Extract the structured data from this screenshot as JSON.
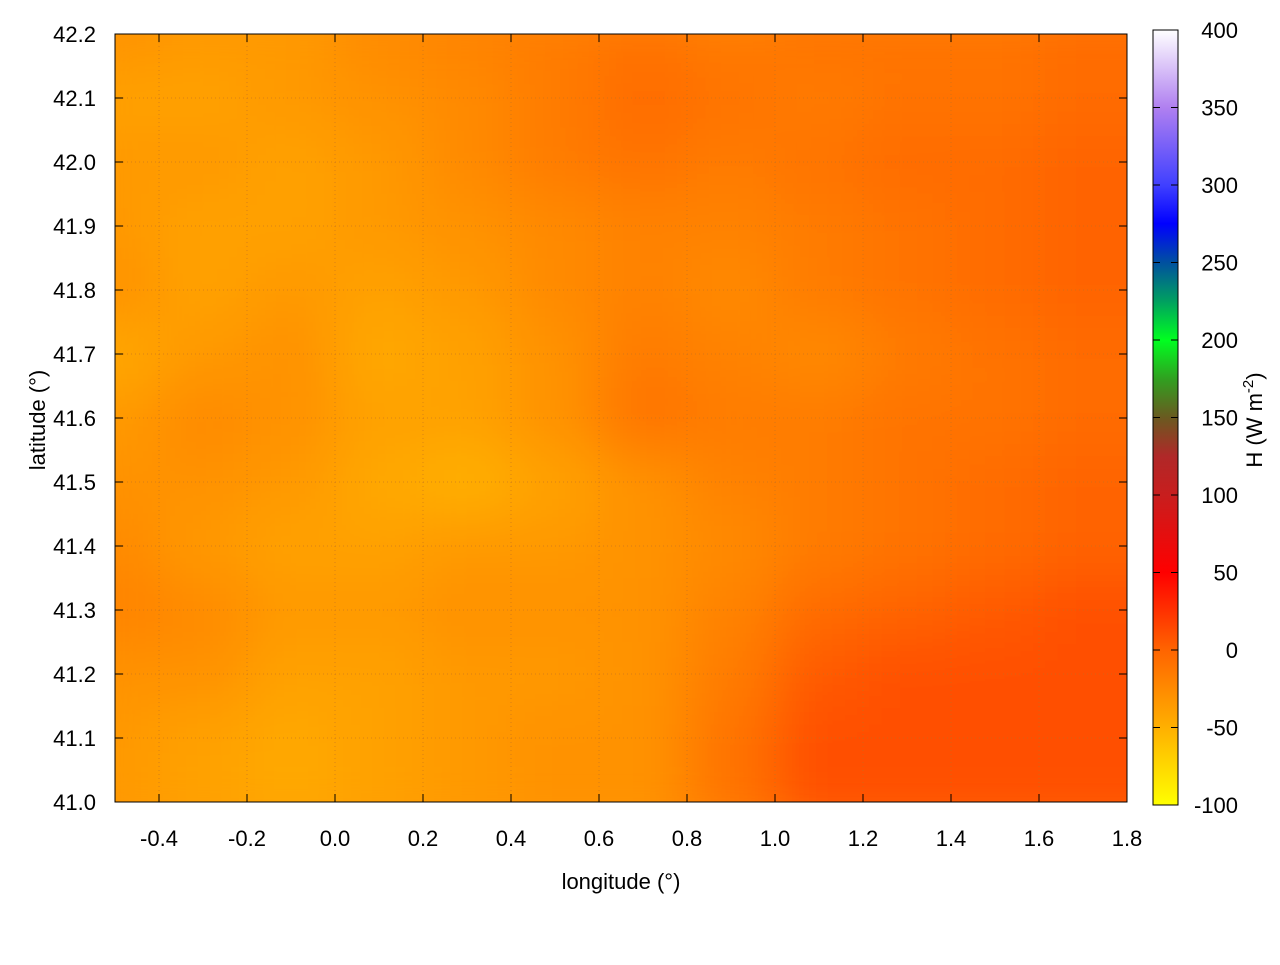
{
  "chart_data": {
    "type": "heatmap",
    "xlabel": "longitude (°)",
    "ylabel": "latitude (°)",
    "colorbar_label": "H (W m",
    "colorbar_label_sup": "-2",
    "colorbar_label_close": ")",
    "xlim": [
      -0.5,
      1.8
    ],
    "ylim": [
      41.0,
      42.2
    ],
    "clim": [
      -100,
      400
    ],
    "x_ticks": [
      "-0.4",
      "-0.2",
      "0.0",
      "0.2",
      "0.4",
      "0.6",
      "0.8",
      "1.0",
      "1.2",
      "1.4",
      "1.6",
      "1.8"
    ],
    "y_ticks": [
      "41.0",
      "41.1",
      "41.2",
      "41.3",
      "41.4",
      "41.5",
      "41.6",
      "41.7",
      "41.8",
      "41.9",
      "42.0",
      "42.1",
      "42.2"
    ],
    "colorbar_ticks": [
      "-100",
      "-50",
      "0",
      "50",
      "100",
      "150",
      "200",
      "250",
      "300",
      "350",
      "400"
    ],
    "grid": true,
    "contours": true,
    "palette": [
      [
        -100,
        "#ffff00"
      ],
      [
        -50,
        "#ffb000"
      ],
      [
        0,
        "#ff6400"
      ],
      [
        50,
        "#ff0000"
      ],
      [
        100,
        "#c81e1e"
      ],
      [
        125,
        "#b02828"
      ],
      [
        150,
        "#6a5a20"
      ],
      [
        175,
        "#30a020"
      ],
      [
        200,
        "#00ff20"
      ],
      [
        225,
        "#00a060"
      ],
      [
        250,
        "#0050a0"
      ],
      [
        275,
        "#0000ff"
      ],
      [
        300,
        "#4040ff"
      ],
      [
        350,
        "#b080f0"
      ],
      [
        400,
        "#ffffff"
      ]
    ],
    "lon": [
      -0.4,
      -0.2,
      0.0,
      0.2,
      0.4,
      0.6,
      0.8,
      1.0,
      1.2,
      1.4,
      1.6,
      1.8
    ],
    "lat": [
      42.15,
      42.05,
      41.95,
      41.85,
      41.75,
      41.65,
      41.55,
      41.45,
      41.35,
      41.25,
      41.15,
      41.05
    ],
    "values": [
      [
        -30,
        -35,
        -35,
        -25,
        -20,
        -15,
        -10,
        -15,
        -10,
        -10,
        -10,
        -5
      ],
      [
        -40,
        -40,
        -35,
        -30,
        -25,
        -15,
        -5,
        -10,
        -15,
        -10,
        -10,
        -5
      ],
      [
        -35,
        -35,
        -40,
        -35,
        -25,
        -15,
        -10,
        -15,
        -10,
        -5,
        -5,
        0
      ],
      [
        -35,
        -40,
        -40,
        -35,
        -30,
        -25,
        -20,
        -20,
        -15,
        -10,
        -5,
        0
      ],
      [
        -30,
        -40,
        -35,
        -40,
        -35,
        -25,
        -20,
        -25,
        -15,
        -10,
        -5,
        0
      ],
      [
        -45,
        -35,
        -30,
        -45,
        -40,
        -30,
        -15,
        -20,
        -25,
        -15,
        -10,
        -5
      ],
      [
        -35,
        -25,
        -30,
        -40,
        -40,
        -30,
        -10,
        -15,
        -15,
        -10,
        -10,
        -5
      ],
      [
        -30,
        -30,
        -35,
        -45,
        -50,
        -40,
        -30,
        -20,
        -15,
        -10,
        -5,
        0
      ],
      [
        -25,
        -35,
        -40,
        -40,
        -35,
        -35,
        -30,
        -25,
        -15,
        -10,
        -5,
        0
      ],
      [
        -20,
        -25,
        -35,
        -35,
        -30,
        -30,
        -30,
        -20,
        -5,
        0,
        5,
        10
      ],
      [
        -30,
        -30,
        -40,
        -40,
        -35,
        -35,
        -30,
        -15,
        5,
        10,
        10,
        10
      ],
      [
        -35,
        -40,
        -45,
        -40,
        -35,
        -30,
        -30,
        -10,
        10,
        10,
        10,
        10
      ]
    ]
  }
}
